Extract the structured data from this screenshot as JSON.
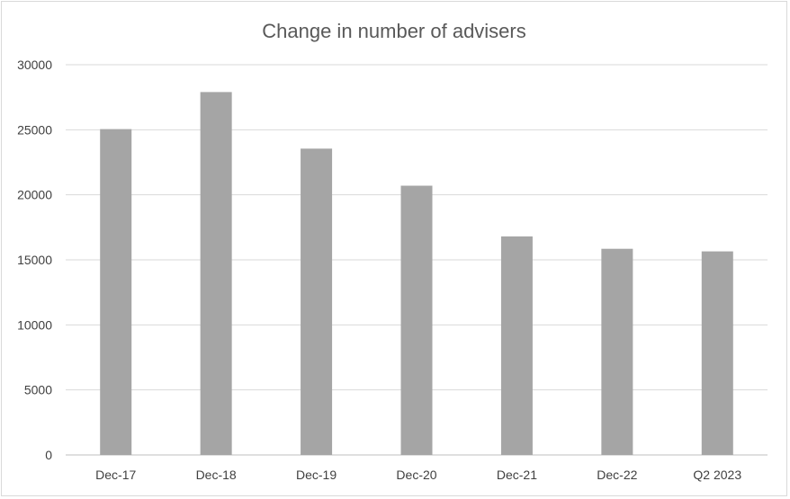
{
  "chart_data": {
    "type": "bar",
    "title": "Change in number of advisers",
    "categories": [
      "Dec-17",
      "Dec-18",
      "Dec-19",
      "Dec-20",
      "Dec-21",
      "Dec-22",
      "Q2 2023"
    ],
    "values": [
      25050,
      27900,
      23550,
      20700,
      16800,
      15850,
      15650
    ],
    "ylim": [
      0,
      30000
    ],
    "yticks": [
      0,
      5000,
      10000,
      15000,
      20000,
      25000,
      30000
    ],
    "grid": true,
    "legend": "none",
    "bar_color": "#a5a5a5"
  }
}
